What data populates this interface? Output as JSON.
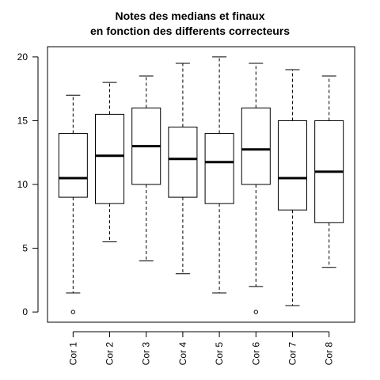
{
  "chart_data": {
    "type": "boxplot",
    "title_lines": [
      "Notes des medians et finaux",
      "en fonction des differents correcteurs"
    ],
    "xlabel": "",
    "ylabel": "",
    "ylim": [
      -0.8,
      20.8
    ],
    "yticks": [
      0,
      5,
      10,
      15,
      20
    ],
    "grid": false,
    "categories": [
      "Cor 1",
      "Cor 2",
      "Cor 3",
      "Cor 4",
      "Cor 5",
      "Cor 6",
      "Cor 7",
      "Cor 8"
    ],
    "boxes": [
      {
        "min": 1.5,
        "q1": 9.0,
        "median": 10.5,
        "q3": 14.0,
        "max": 17.0,
        "outliers": [
          0
        ]
      },
      {
        "min": 5.5,
        "q1": 8.5,
        "median": 12.25,
        "q3": 15.5,
        "max": 18.0,
        "outliers": []
      },
      {
        "min": 4.0,
        "q1": 10.0,
        "median": 13.0,
        "q3": 16.0,
        "max": 18.5,
        "outliers": []
      },
      {
        "min": 3.0,
        "q1": 9.0,
        "median": 12.0,
        "q3": 14.5,
        "max": 19.5,
        "outliers": []
      },
      {
        "min": 1.5,
        "q1": 8.5,
        "median": 11.75,
        "q3": 14.0,
        "max": 20.0,
        "outliers": []
      },
      {
        "min": 2.0,
        "q1": 10.0,
        "median": 12.75,
        "q3": 16.0,
        "max": 19.5,
        "outliers": [
          0
        ]
      },
      {
        "min": 0.5,
        "q1": 8.0,
        "median": 10.5,
        "q3": 15.0,
        "max": 19.0,
        "outliers": []
      },
      {
        "min": 3.5,
        "q1": 7.0,
        "median": 11.0,
        "q3": 15.0,
        "max": 18.5,
        "outliers": []
      }
    ],
    "colors": {
      "stroke": "#000000",
      "fill": "#ffffff"
    }
  }
}
